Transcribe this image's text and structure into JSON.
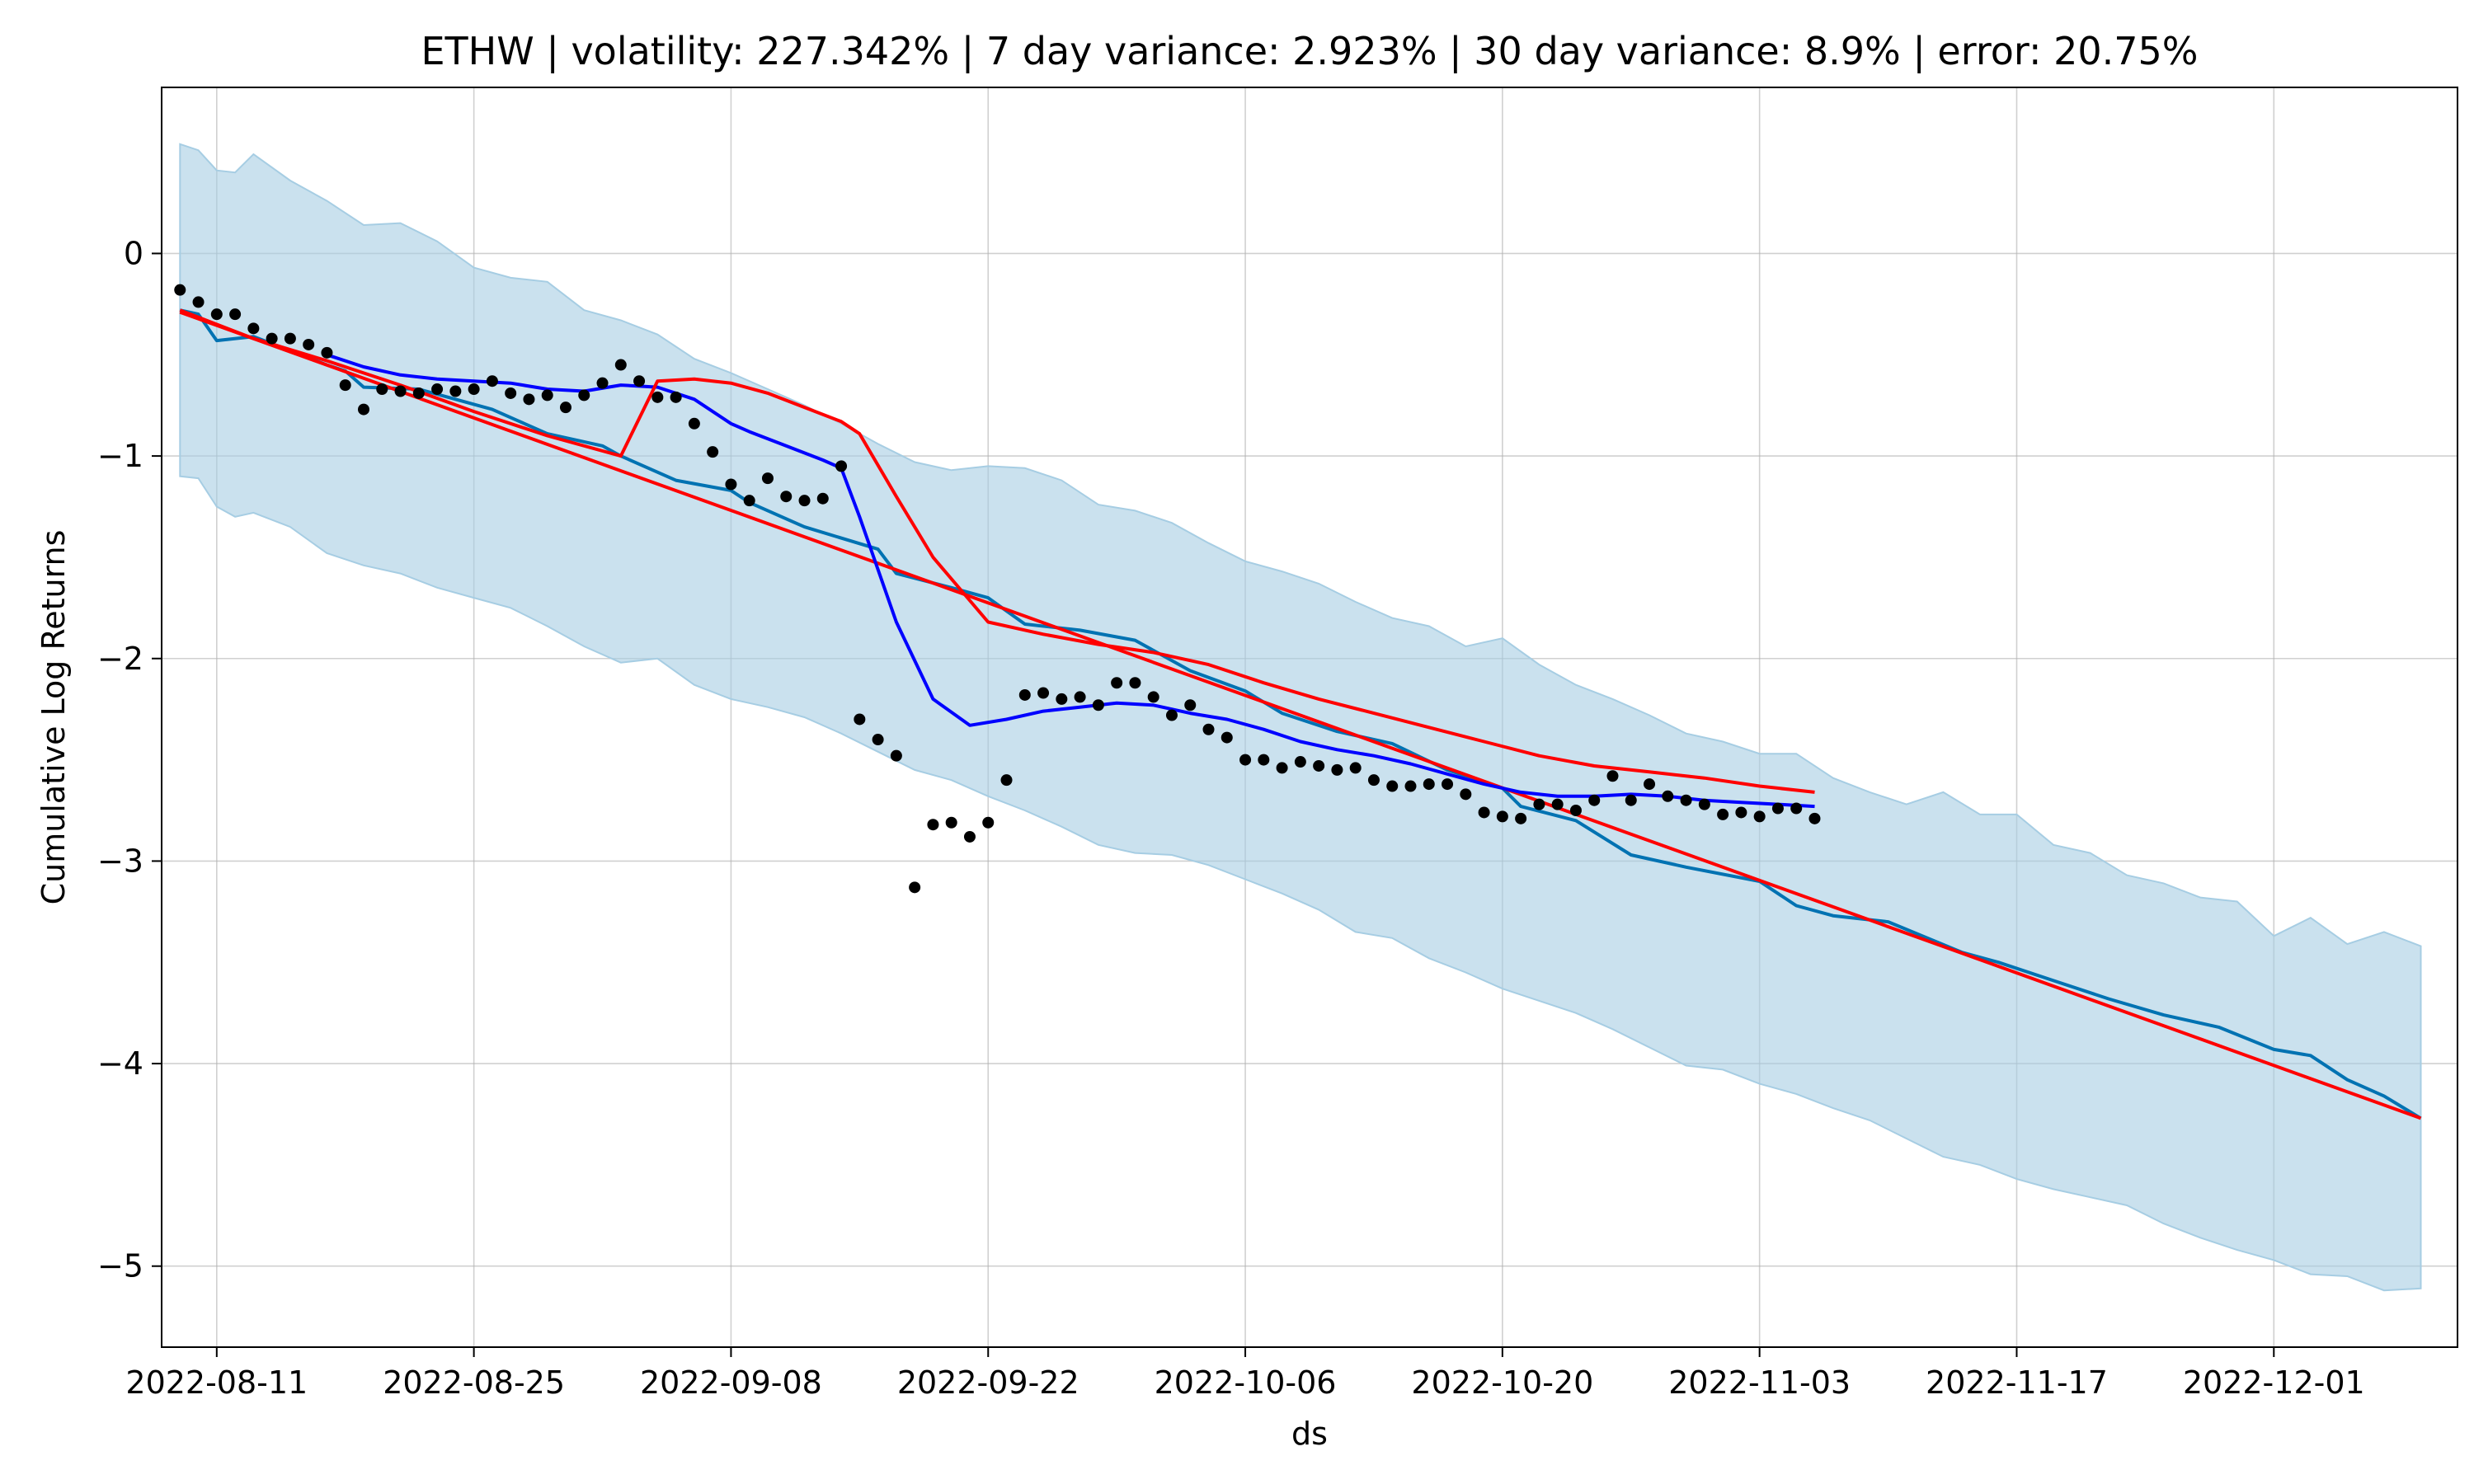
{
  "chart_data": {
    "type": "line",
    "title": "ETHW | volatility: 227.342% | 7 day variance: 2.923% | 30 day variance: 8.9% | error: 20.75%",
    "xlabel": "ds",
    "ylabel": "Cumulative Log Returns",
    "x_ticks": [
      "2022-08-11",
      "2022-08-25",
      "2022-09-08",
      "2022-09-22",
      "2022-10-06",
      "2022-10-20",
      "2022-11-03",
      "2022-11-17",
      "2022-12-01"
    ],
    "y_ticks": [
      0,
      -1,
      -2,
      -3,
      -4,
      -5
    ],
    "xlim": [
      "2022-08-08",
      "2022-12-11"
    ],
    "ylim": [
      -5.4,
      0.82
    ],
    "grid": true,
    "colors": {
      "band": "#a6cde3",
      "forecast": "#0072b2",
      "trend": "#ff0000",
      "ma_short": "#0000ff",
      "ma_long": "#ff0000",
      "points": "#000000"
    },
    "series": [
      {
        "kind": "uncertainty_band",
        "x": [
          "2022-08-09",
          "2022-08-10",
          "2022-08-11",
          "2022-08-12",
          "2022-08-13",
          "2022-08-15",
          "2022-08-17",
          "2022-08-19",
          "2022-08-21",
          "2022-08-23",
          "2022-08-25",
          "2022-08-27",
          "2022-08-29",
          "2022-08-31",
          "2022-09-02",
          "2022-09-04",
          "2022-09-06",
          "2022-09-08",
          "2022-09-10",
          "2022-09-12",
          "2022-09-14",
          "2022-09-16",
          "2022-09-18",
          "2022-09-20",
          "2022-09-22",
          "2022-09-24",
          "2022-09-26",
          "2022-09-28",
          "2022-09-30",
          "2022-10-02",
          "2022-10-04",
          "2022-10-06",
          "2022-10-08",
          "2022-10-10",
          "2022-10-12",
          "2022-10-14",
          "2022-10-16",
          "2022-10-18",
          "2022-10-20",
          "2022-10-22",
          "2022-10-24",
          "2022-10-26",
          "2022-10-28",
          "2022-10-30",
          "2022-11-01",
          "2022-11-03",
          "2022-11-05",
          "2022-11-07",
          "2022-11-09",
          "2022-11-11",
          "2022-11-13",
          "2022-11-15",
          "2022-11-17",
          "2022-11-19",
          "2022-11-21",
          "2022-11-23",
          "2022-11-25",
          "2022-11-27",
          "2022-11-29",
          "2022-12-01",
          "2022-12-03",
          "2022-12-05",
          "2022-12-07",
          "2022-12-09"
        ],
        "upper": [
          0.54,
          0.51,
          0.41,
          0.4,
          0.49,
          0.36,
          0.26,
          0.14,
          0.15,
          0.06,
          -0.07,
          -0.12,
          -0.14,
          -0.28,
          -0.33,
          -0.4,
          -0.52,
          -0.59,
          -0.67,
          -0.75,
          -0.84,
          -0.94,
          -1.03,
          -1.07,
          -1.05,
          -1.06,
          -1.12,
          -1.24,
          -1.27,
          -1.33,
          -1.43,
          -1.52,
          -1.57,
          -1.63,
          -1.72,
          -1.8,
          -1.84,
          -1.94,
          -1.9,
          -2.03,
          -2.13,
          -2.2,
          -2.28,
          -2.37,
          -2.41,
          -2.47,
          -2.47,
          -2.59,
          -2.66,
          -2.72,
          -2.66,
          -2.77,
          -2.77,
          -2.92,
          -2.96,
          -3.07,
          -3.11,
          -3.18,
          -3.2,
          -3.37,
          -3.28,
          -3.41,
          -3.35,
          -3.42
        ],
        "lower": [
          -1.1,
          -1.11,
          -1.25,
          -1.3,
          -1.28,
          -1.35,
          -1.48,
          -1.54,
          -1.58,
          -1.65,
          -1.7,
          -1.75,
          -1.84,
          -1.94,
          -2.02,
          -2.0,
          -2.13,
          -2.2,
          -2.24,
          -2.29,
          -2.37,
          -2.46,
          -2.55,
          -2.6,
          -2.68,
          -2.75,
          -2.83,
          -2.92,
          -2.96,
          -2.97,
          -3.02,
          -3.09,
          -3.16,
          -3.24,
          -3.35,
          -3.38,
          -3.48,
          -3.55,
          -3.63,
          -3.69,
          -3.75,
          -3.83,
          -3.92,
          -4.01,
          -4.03,
          -4.1,
          -4.15,
          -4.22,
          -4.28,
          -4.37,
          -4.46,
          -4.5,
          -4.57,
          -4.62,
          -4.66,
          -4.7,
          -4.79,
          -4.86,
          -4.92,
          -4.97,
          -5.04,
          -5.05,
          -5.12,
          -5.11
        ]
      },
      {
        "kind": "forecast",
        "name": "",
        "x": [
          "2022-08-09",
          "2022-08-10",
          "2022-08-11",
          "2022-08-13",
          "2022-08-15",
          "2022-08-17",
          "2022-08-18",
          "2022-08-19",
          "2022-08-22",
          "2022-08-24",
          "2022-08-26",
          "2022-08-29",
          "2022-09-01",
          "2022-09-02",
          "2022-09-05",
          "2022-09-08",
          "2022-09-09",
          "2022-09-12",
          "2022-09-16",
          "2022-09-17",
          "2022-09-20",
          "2022-09-22",
          "2022-09-24",
          "2022-09-27",
          "2022-09-30",
          "2022-10-03",
          "2022-10-06",
          "2022-10-08",
          "2022-10-11",
          "2022-10-14",
          "2022-10-17",
          "2022-10-20",
          "2022-10-21",
          "2022-10-24",
          "2022-10-27",
          "2022-10-30",
          "2022-11-03",
          "2022-11-05",
          "2022-11-07",
          "2022-11-10",
          "2022-11-14",
          "2022-11-16",
          "2022-11-19",
          "2022-11-22",
          "2022-11-25",
          "2022-11-28",
          "2022-12-01",
          "2022-12-03",
          "2022-12-05",
          "2022-12-07",
          "2022-12-09"
        ],
        "y": [
          -0.28,
          -0.3,
          -0.43,
          -0.41,
          -0.48,
          -0.55,
          -0.58,
          -0.66,
          -0.67,
          -0.72,
          -0.77,
          -0.89,
          -0.95,
          -1.0,
          -1.12,
          -1.17,
          -1.23,
          -1.35,
          -1.46,
          -1.58,
          -1.65,
          -1.7,
          -1.83,
          -1.86,
          -1.91,
          -2.06,
          -2.16,
          -2.27,
          -2.36,
          -2.42,
          -2.55,
          -2.64,
          -2.73,
          -2.8,
          -2.97,
          -3.03,
          -3.1,
          -3.22,
          -3.27,
          -3.3,
          -3.45,
          -3.5,
          -3.59,
          -3.68,
          -3.76,
          -3.82,
          -3.93,
          -3.96,
          -4.08,
          -4.16,
          -4.27
        ]
      },
      {
        "kind": "trend",
        "name": "",
        "x": [
          "2022-08-09",
          "2022-12-09"
        ],
        "y": [
          -0.29,
          -4.27
        ]
      },
      {
        "kind": "moving_average_short",
        "name": "",
        "x": [
          "2022-08-17",
          "2022-08-19",
          "2022-08-21",
          "2022-08-23",
          "2022-08-25",
          "2022-08-27",
          "2022-08-29",
          "2022-08-31",
          "2022-09-02",
          "2022-09-04",
          "2022-09-06",
          "2022-09-08",
          "2022-09-09",
          "2022-09-11",
          "2022-09-13",
          "2022-09-14",
          "2022-09-15",
          "2022-09-17",
          "2022-09-19",
          "2022-09-21",
          "2022-09-23",
          "2022-09-25",
          "2022-09-27",
          "2022-09-29",
          "2022-10-01",
          "2022-10-03",
          "2022-10-05",
          "2022-10-07",
          "2022-10-09",
          "2022-10-11",
          "2022-10-13",
          "2022-10-15",
          "2022-10-17",
          "2022-10-19",
          "2022-10-21",
          "2022-10-23",
          "2022-10-25",
          "2022-10-27",
          "2022-10-29",
          "2022-10-31",
          "2022-11-02",
          "2022-11-04",
          "2022-11-06"
        ],
        "y": [
          -0.5,
          -0.56,
          -0.6,
          -0.62,
          -0.63,
          -0.64,
          -0.67,
          -0.68,
          -0.65,
          -0.66,
          -0.72,
          -0.84,
          -0.88,
          -0.95,
          -1.02,
          -1.06,
          -1.3,
          -1.82,
          -2.2,
          -2.33,
          -2.3,
          -2.26,
          -2.24,
          -2.22,
          -2.23,
          -2.27,
          -2.3,
          -2.35,
          -2.41,
          -2.45,
          -2.48,
          -2.52,
          -2.57,
          -2.62,
          -2.66,
          -2.68,
          -2.68,
          -2.67,
          -2.68,
          -2.7,
          -2.71,
          -2.72,
          -2.73
        ]
      },
      {
        "kind": "moving_average_long",
        "name": "",
        "x": [
          "2022-08-09",
          "2022-08-13",
          "2022-08-17",
          "2022-08-21",
          "2022-08-25",
          "2022-08-29",
          "2022-09-02",
          "2022-09-04",
          "2022-09-06",
          "2022-09-08",
          "2022-09-10",
          "2022-09-12",
          "2022-09-14",
          "2022-09-15",
          "2022-09-17",
          "2022-09-19",
          "2022-09-22",
          "2022-09-25",
          "2022-09-28",
          "2022-10-01",
          "2022-10-04",
          "2022-10-07",
          "2022-10-10",
          "2022-10-13",
          "2022-10-16",
          "2022-10-19",
          "2022-10-22",
          "2022-10-25",
          "2022-10-28",
          "2022-10-31",
          "2022-11-03",
          "2022-11-06"
        ],
        "y": [
          -0.28,
          -0.42,
          -0.53,
          -0.65,
          -0.78,
          -0.9,
          -1.0,
          -0.63,
          -0.62,
          -0.64,
          -0.69,
          -0.76,
          -0.83,
          -0.89,
          -1.2,
          -1.5,
          -1.82,
          -1.88,
          -1.93,
          -1.97,
          -2.03,
          -2.12,
          -2.2,
          -2.27,
          -2.34,
          -2.41,
          -2.48,
          -2.53,
          -2.56,
          -2.59,
          -2.63,
          -2.66
        ]
      },
      {
        "kind": "actual",
        "name": "",
        "x": [
          "2022-08-09",
          "2022-08-10",
          "2022-08-11",
          "2022-08-12",
          "2022-08-13",
          "2022-08-14",
          "2022-08-15",
          "2022-08-16",
          "2022-08-17",
          "2022-08-18",
          "2022-08-19",
          "2022-08-20",
          "2022-08-21",
          "2022-08-22",
          "2022-08-23",
          "2022-08-24",
          "2022-08-25",
          "2022-08-26",
          "2022-08-27",
          "2022-08-28",
          "2022-08-29",
          "2022-08-30",
          "2022-08-31",
          "2022-09-01",
          "2022-09-02",
          "2022-09-03",
          "2022-09-04",
          "2022-09-05",
          "2022-09-06",
          "2022-09-07",
          "2022-09-08",
          "2022-09-09",
          "2022-09-10",
          "2022-09-11",
          "2022-09-12",
          "2022-09-13",
          "2022-09-14",
          "2022-09-15",
          "2022-09-16",
          "2022-09-17",
          "2022-09-18",
          "2022-09-19",
          "2022-09-20",
          "2022-09-21",
          "2022-09-22",
          "2022-09-23",
          "2022-09-24",
          "2022-09-25",
          "2022-09-26",
          "2022-09-27",
          "2022-09-28",
          "2022-09-29",
          "2022-09-30",
          "2022-10-01",
          "2022-10-02",
          "2022-10-03",
          "2022-10-04",
          "2022-10-05",
          "2022-10-06",
          "2022-10-07",
          "2022-10-08",
          "2022-10-09",
          "2022-10-10",
          "2022-10-11",
          "2022-10-12",
          "2022-10-13",
          "2022-10-14",
          "2022-10-15",
          "2022-10-16",
          "2022-10-17",
          "2022-10-18",
          "2022-10-19",
          "2022-10-20",
          "2022-10-21",
          "2022-10-22",
          "2022-10-23",
          "2022-10-24",
          "2022-10-25",
          "2022-10-26",
          "2022-10-27",
          "2022-10-28",
          "2022-10-29",
          "2022-10-30",
          "2022-10-31",
          "2022-11-01",
          "2022-11-02",
          "2022-11-03",
          "2022-11-04",
          "2022-11-05",
          "2022-11-06"
        ],
        "y": [
          -0.18,
          -0.24,
          -0.3,
          -0.3,
          -0.37,
          -0.42,
          -0.42,
          -0.45,
          -0.49,
          -0.65,
          -0.77,
          -0.67,
          -0.68,
          -0.69,
          -0.67,
          -0.68,
          -0.67,
          -0.63,
          -0.69,
          -0.72,
          -0.7,
          -0.76,
          -0.7,
          -0.64,
          -0.55,
          -0.63,
          -0.71,
          -0.71,
          -0.84,
          -0.98,
          -1.14,
          -1.22,
          -1.11,
          -1.2,
          -1.22,
          -1.21,
          -1.05,
          -2.3,
          -2.4,
          -2.48,
          -3.13,
          -2.82,
          -2.81,
          -2.88,
          -2.81,
          -2.6,
          -2.18,
          -2.17,
          -2.2,
          -2.19,
          -2.23,
          -2.12,
          -2.12,
          -2.19,
          -2.28,
          -2.23,
          -2.35,
          -2.39,
          -2.5,
          -2.5,
          -2.54,
          -2.51,
          -2.53,
          -2.55,
          -2.54,
          -2.6,
          -2.63,
          -2.63,
          -2.62,
          -2.62,
          -2.67,
          -2.76,
          -2.78,
          -2.79,
          -2.72,
          -2.72,
          -2.75,
          -2.7,
          -2.58,
          -2.7,
          -2.62,
          -2.68,
          -2.7,
          -2.72,
          -2.77,
          -2.76,
          -2.78,
          -2.74,
          -2.74,
          -2.79
        ]
      }
    ]
  }
}
